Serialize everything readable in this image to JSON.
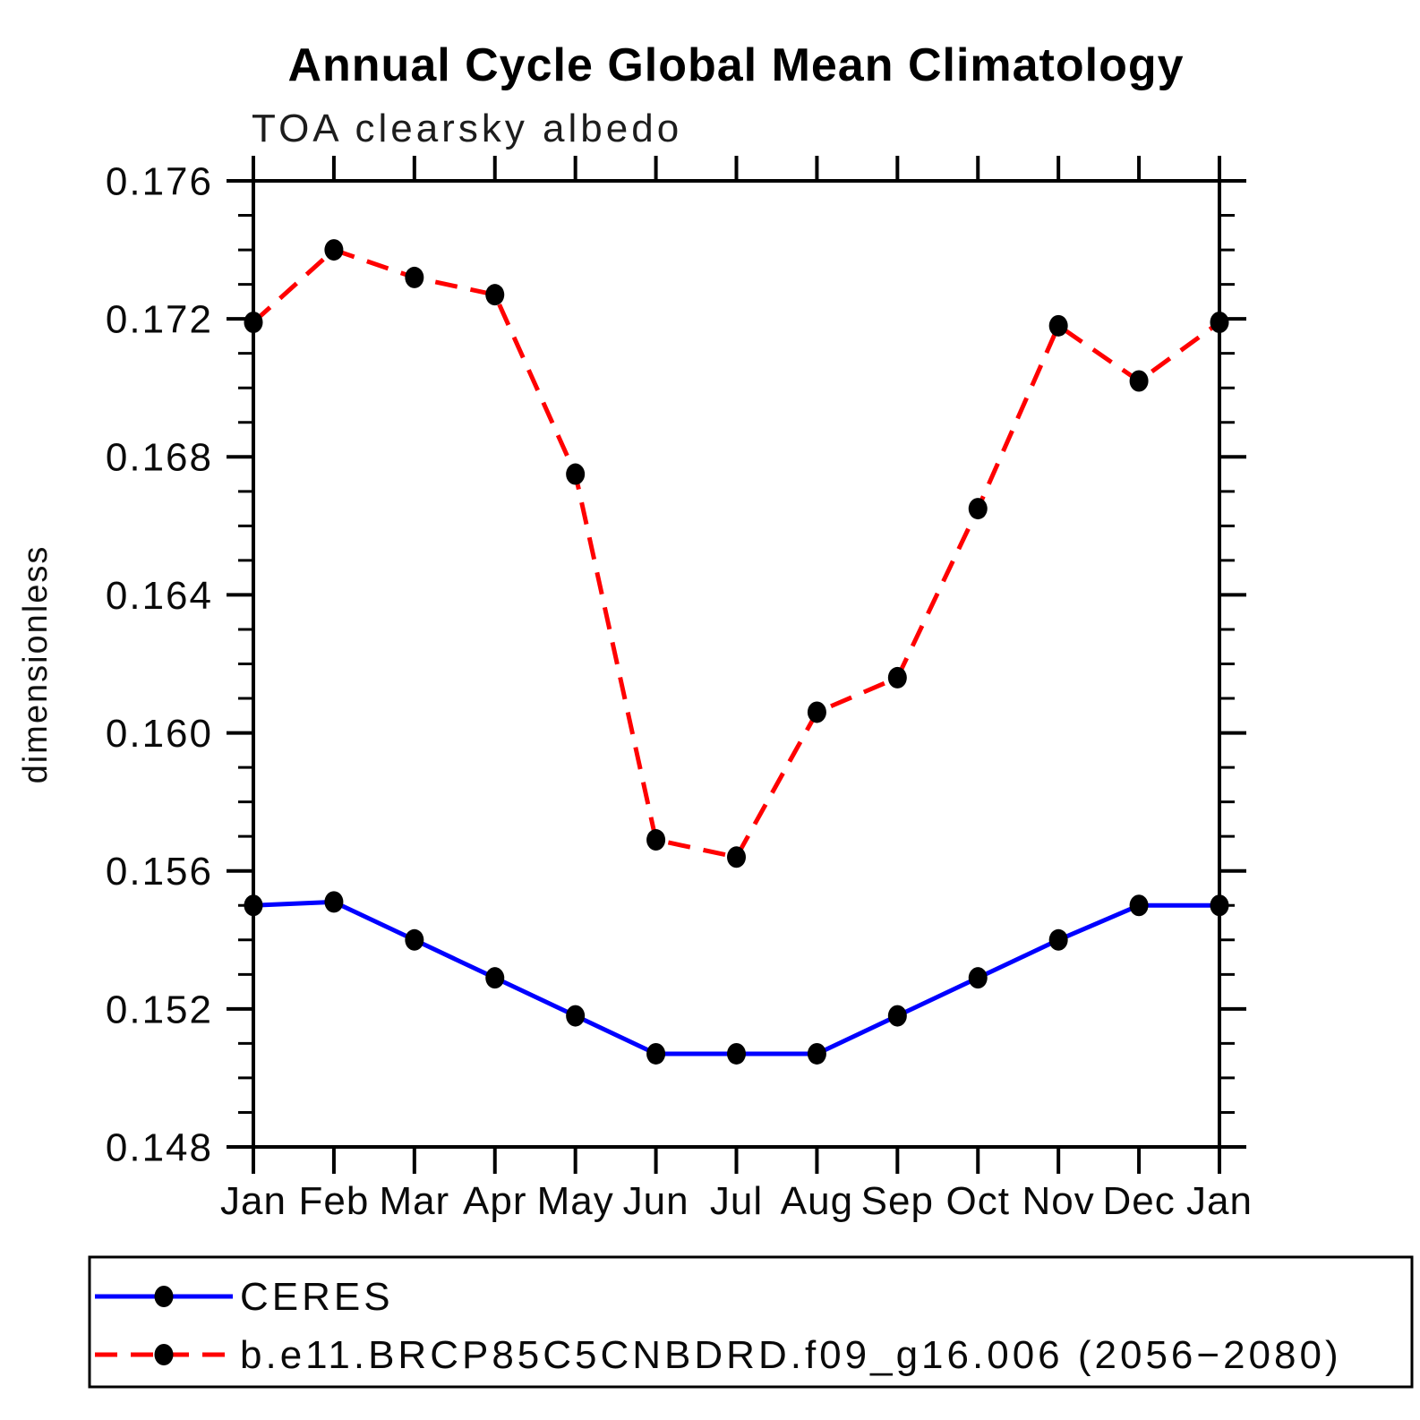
{
  "chart_data": {
    "type": "line",
    "title": "Annual Cycle Global Mean Climatology",
    "subtitle": "TOA clearsky albedo",
    "ylabel": "dimensionless",
    "x_categories": [
      "Jan",
      "Feb",
      "Mar",
      "Apr",
      "May",
      "Jun",
      "Jul",
      "Aug",
      "Sep",
      "Oct",
      "Nov",
      "Dec",
      "Jan"
    ],
    "ylim": [
      0.148,
      0.176
    ],
    "ytick_step": 0.004,
    "ytick_minor_step": 0.001,
    "ytick_labels": [
      "0.176",
      "0.172",
      "0.168",
      "0.164",
      "0.160",
      "0.156",
      "0.152",
      "0.148"
    ],
    "grid": false,
    "legend_position": "bottom-left-box",
    "axis_color": "#000000",
    "background_color": "#ffffff",
    "series": [
      {
        "name": "CERES",
        "color": "#0000ff",
        "line_style": "solid",
        "marker": "filled-circle",
        "marker_color": "#000000",
        "values": [
          0.155,
          0.1551,
          0.154,
          0.1529,
          0.1518,
          0.1507,
          0.1507,
          0.1507,
          0.1518,
          0.1529,
          0.154,
          0.155,
          0.155
        ]
      },
      {
        "name": "b.e11.BRCP85C5CNBDRD.f09_g16.006 (2056−2080)",
        "color": "#ff0000",
        "line_style": "dashed",
        "marker": "filled-circle",
        "marker_color": "#000000",
        "values": [
          0.1719,
          0.174,
          0.1732,
          0.1727,
          0.1675,
          0.1569,
          0.1564,
          0.1606,
          0.1616,
          0.1665,
          0.1718,
          0.1702,
          0.1719
        ]
      }
    ]
  }
}
